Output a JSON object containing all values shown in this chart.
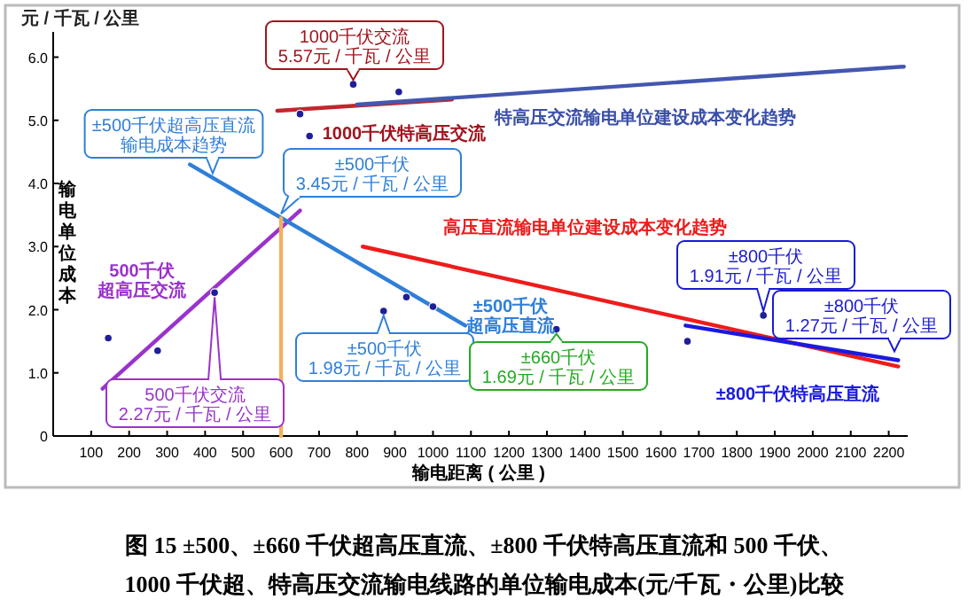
{
  "chart_data": {
    "type": "line",
    "title": "图 15 ±500、±660 千伏超高压直流、±800 千伏特高压直流和 500 千伏、\n1000 千伏超、特高压交流输电线路的单位输电成本(元/千瓦・公里)比较",
    "xlabel": "输电距离 ( 公里 )",
    "ylabel": "输电单位成本",
    "xlim": [
      0,
      2250
    ],
    "xticks": [
      100,
      200,
      300,
      400,
      500,
      600,
      700,
      800,
      900,
      1000,
      1100,
      1200,
      1300,
      1400,
      1500,
      1600,
      1700,
      1800,
      1900,
      2000,
      2100,
      2200
    ],
    "ylim": [
      0,
      6.4
    ],
    "yticks": [
      0,
      {
        "value": 1,
        "label": "1.0"
      },
      {
        "value": 2,
        "label": "2.0"
      },
      {
        "value": 3,
        "label": "3.0"
      },
      {
        "value": 4,
        "label": "4.0"
      },
      {
        "value": 5,
        "label": "5.0"
      },
      {
        "value": 6,
        "label": "6.0"
      }
    ],
    "grid": false,
    "series": [
      {
        "type": "scatter",
        "marker": "circle",
        "color": "#1f1f99",
        "x": [
          145,
          275,
          425,
          650,
          675,
          790,
          870,
          910,
          930,
          1000,
          1325,
          1670,
          1870
        ],
        "values": [
          1.55,
          1.35,
          2.27,
          5.1,
          4.75,
          5.57,
          1.98,
          5.45,
          2.2,
          2.05,
          1.69,
          1.5,
          1.91
        ]
      },
      {
        "color": "#9933cc",
        "x": [
          130,
          650
        ],
        "values": [
          0.75,
          3.57
        ]
      },
      {
        "color": "#2f7fd8",
        "x": [
          360,
          1085
        ],
        "values": [
          4.3,
          1.75
        ]
      },
      {
        "color": "#c0272d",
        "x": [
          590,
          1050
        ],
        "values": [
          5.15,
          5.33
        ]
      },
      {
        "color": "#4457b0",
        "x": [
          800,
          2240
        ],
        "values": [
          5.25,
          5.85
        ]
      },
      {
        "color": "#ee1c1c",
        "x": [
          815,
          2225
        ],
        "values": [
          3.0,
          1.1
        ]
      },
      {
        "color": "#1a1ae0",
        "x": [
          1665,
          2225
        ],
        "values": [
          1.75,
          1.2
        ]
      },
      {
        "color": "#f0b060",
        "x": [
          600,
          600
        ],
        "values": [
          0,
          3.45
        ]
      }
    ],
    "annotations": [
      "元 / 千瓦 / 公里",
      "1000千伏特高压交流",
      "特高压交流输电单位建设成本变化趋势",
      "500千伏超高压交流",
      "±500千伏超高压直流",
      "高压直流输电单位建设成本变化趋势",
      "±800千伏特高压直流",
      {
        "text": "1000千伏交流\n5.57元 / 千瓦 / 公里",
        "x": 790,
        "y": 5.57
      },
      {
        "text": "±500千伏\n3.45元 / 千瓦 / 公里",
        "x": 600,
        "y": 3.45
      },
      {
        "text": "±500千伏超高压直流输电成本趋势",
        "x": 420,
        "y": 4.09
      },
      {
        "text": "500千伏交流\n2.27元 / 千瓦 / 公里",
        "x": 425,
        "y": 2.27
      },
      {
        "text": "±500千伏\n1.98元 / 千瓦 / 公里",
        "x": 870,
        "y": 1.98
      },
      {
        "text": "±660千伏\n1.69元 / 千瓦 / 公里",
        "x": 1325,
        "y": 1.69
      },
      {
        "text": "±800千伏\n1.91元 / 千瓦 / 公里",
        "x": 1870,
        "y": 1.91
      },
      {
        "text": "±800千伏\n1.27元 / 千瓦 / 公里",
        "x": 2215,
        "y": 1.27
      }
    ]
  }
}
